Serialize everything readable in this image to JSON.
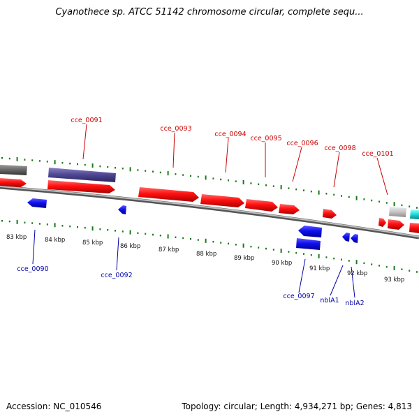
{
  "title": "Cyanothece sp. ATCC 51142 chromosome circular, complete sequ...",
  "footer": {
    "accession": "Accession: NC_010546",
    "summary": "Topology: circular; Length: 4,934,271 bp; Genes: 4,813"
  },
  "kbp_labels": [
    "83 kbp",
    "84 kbp",
    "85 kbp",
    "86 kbp",
    "87 kbp",
    "88 kbp",
    "89 kbp",
    "90 kbp",
    "91 kbp",
    "92 kbp",
    "93 kbp"
  ],
  "gene_labels_forward": [
    "cce_0091",
    "cce_0093",
    "cce_0094",
    "cce_0095",
    "cce_0096",
    "cce_0098",
    "cce_0101"
  ],
  "gene_labels_reverse": [
    "cce_0090",
    "cce_0092",
    "cce_0097",
    "nblA1",
    "nblA2"
  ],
  "colors": {
    "forward_gene": "#ff1a1a",
    "reverse_gene": "#1010e0",
    "rna_feature": "#5a4f9a",
    "backbone": "#8a8a8a",
    "tick": "#1a7a1a",
    "forward_label": "#cc0000",
    "reverse_label": "#0000aa"
  }
}
